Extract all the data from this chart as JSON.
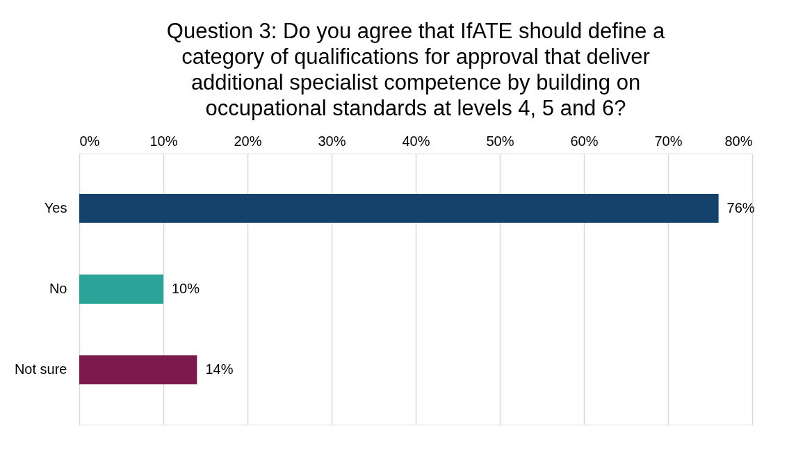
{
  "chart_data": {
    "type": "bar",
    "orientation": "horizontal",
    "title": "Question 3: Do you agree that IfATE should define a category of qualifications for approval that deliver additional specialist competence by building on occupational standards at levels 4, 5 and 6?",
    "categories": [
      "Yes",
      "No",
      "Not sure"
    ],
    "values": [
      76,
      10,
      14
    ],
    "colors": [
      "#14426b",
      "#2aa398",
      "#7b1a4b"
    ],
    "xlim": [
      0,
      80
    ],
    "xticks": [
      {
        "value": 0,
        "label": "0%"
      },
      {
        "value": 10,
        "label": "10%"
      },
      {
        "value": 20,
        "label": "20%"
      },
      {
        "value": 30,
        "label": "30%"
      },
      {
        "value": 40,
        "label": "40%"
      },
      {
        "value": 50,
        "label": "50%"
      },
      {
        "value": 60,
        "label": "60%"
      },
      {
        "value": 70,
        "label": "70%"
      },
      {
        "value": 80,
        "label": "80%"
      }
    ],
    "value_labels": [
      "76%",
      "10%",
      "14%"
    ],
    "grid": "x",
    "legend": false
  }
}
